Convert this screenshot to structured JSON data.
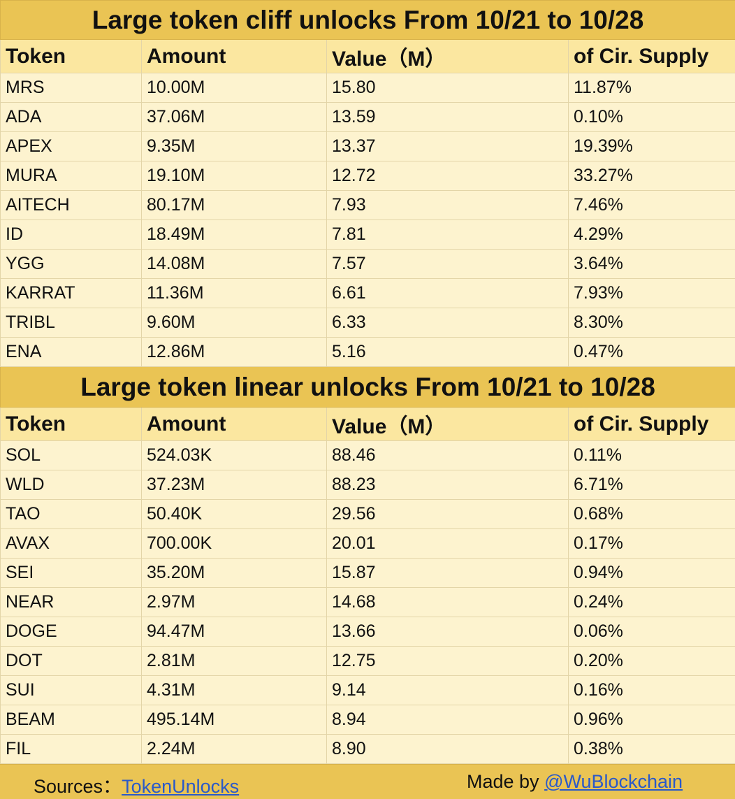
{
  "cliff": {
    "title": "Large token cliff unlocks From 10/21 to 10/28",
    "headers": [
      "Token",
      "Amount",
      "Value（M）",
      "of Cir. Supply"
    ],
    "rows": [
      [
        "MRS",
        "10.00M",
        "15.80",
        "11.87%"
      ],
      [
        "ADA",
        "37.06M",
        "13.59",
        "0.10%"
      ],
      [
        "APEX",
        "9.35M",
        "13.37",
        "19.39%"
      ],
      [
        "MURA",
        "19.10M",
        "12.72",
        "33.27%"
      ],
      [
        "AITECH",
        "80.17M",
        "7.93",
        "7.46%"
      ],
      [
        "ID",
        "18.49M",
        "7.81",
        "4.29%"
      ],
      [
        "YGG",
        "14.08M",
        "7.57",
        "3.64%"
      ],
      [
        "KARRAT",
        "11.36M",
        "6.61",
        "7.93%"
      ],
      [
        "TRIBL",
        "9.60M",
        "6.33",
        "8.30%"
      ],
      [
        "ENA",
        "12.86M",
        "5.16",
        "0.47%"
      ]
    ]
  },
  "linear": {
    "title": "Large token linear unlocks From 10/21 to 10/28",
    "headers": [
      "Token",
      "Amount",
      "Value（M）",
      "of Cir. Supply"
    ],
    "rows": [
      [
        "SOL",
        "524.03K",
        "88.46",
        "0.11%"
      ],
      [
        "WLD",
        "37.23M",
        "88.23",
        "6.71%"
      ],
      [
        "TAO",
        "50.40K",
        "29.56",
        "0.68%"
      ],
      [
        "AVAX",
        "700.00K",
        "20.01",
        "0.17%"
      ],
      [
        "SEI",
        "35.20M",
        "15.87",
        "0.94%"
      ],
      [
        "NEAR",
        "2.97M",
        "14.68",
        "0.24%"
      ],
      [
        "DOGE",
        "94.47M",
        "13.66",
        "0.06%"
      ],
      [
        "DOT",
        "2.81M",
        "12.75",
        "0.20%"
      ],
      [
        "SUI",
        "4.31M",
        "9.14",
        "0.16%"
      ],
      [
        "BEAM",
        "495.14M",
        "8.94",
        "0.96%"
      ],
      [
        "FIL",
        "2.24M",
        "8.90",
        "0.38%"
      ]
    ]
  },
  "footer": {
    "sources_label": "Sources：",
    "sources_link": "TokenUnlocks",
    "made_label": "Made by ",
    "made_link": "@WuBlockchain"
  },
  "colors": {
    "title_bg": "#eac454",
    "header_bg": "#fbe7a0",
    "cell_bg": "#fdf3cf",
    "link": "#2a59c9"
  }
}
